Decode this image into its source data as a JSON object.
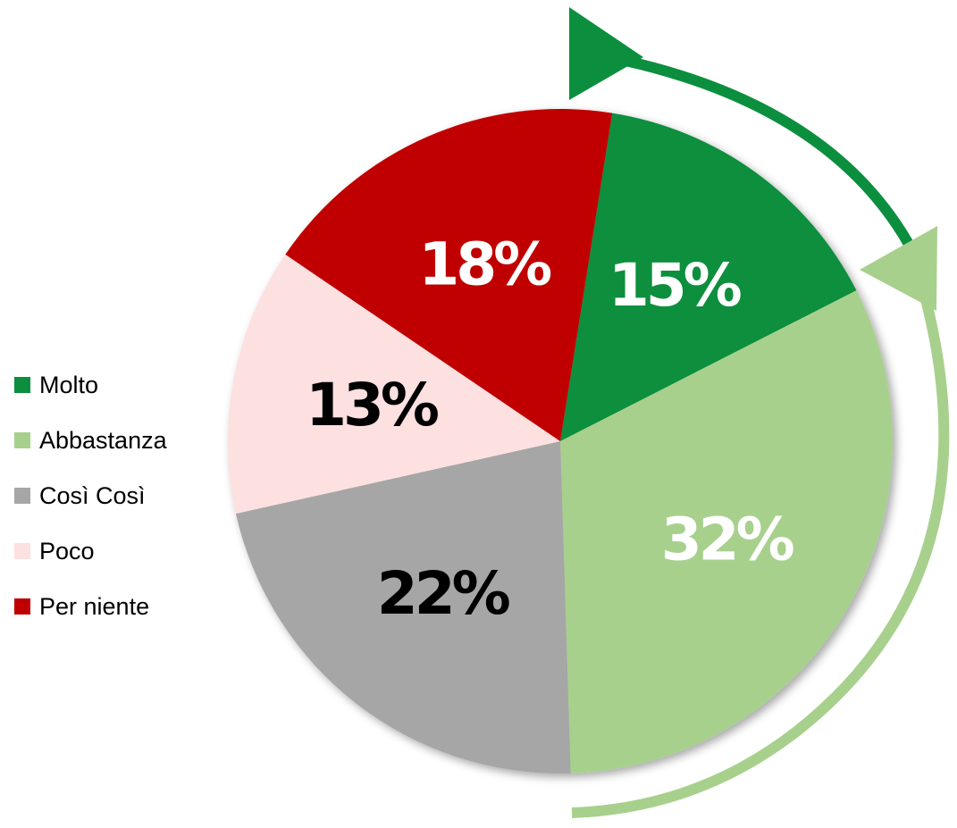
{
  "chart_data": {
    "type": "pie",
    "categories": [
      "Molto",
      "Abbastanza",
      "Così Così",
      "Poco",
      "Per niente"
    ],
    "values": [
      15,
      32,
      22,
      13,
      18
    ],
    "labels": [
      "15%",
      "32%",
      "22%",
      "13%",
      "18%"
    ],
    "colors": [
      "#0b8f3e",
      "#a8d08d",
      "#a6a6a6",
      "#fde0e0",
      "#c00000"
    ],
    "label_colors": [
      "#ffffff",
      "#ffffff",
      "#000000",
      "#000000",
      "#ffffff"
    ],
    "start_angle_deg": 9,
    "direction": "clockwise",
    "legend_position": "left",
    "arrows": [
      {
        "color": "#0b8f3e",
        "meaning": "Molto"
      },
      {
        "color": "#a8d08d",
        "meaning": "Abbastanza"
      }
    ]
  }
}
